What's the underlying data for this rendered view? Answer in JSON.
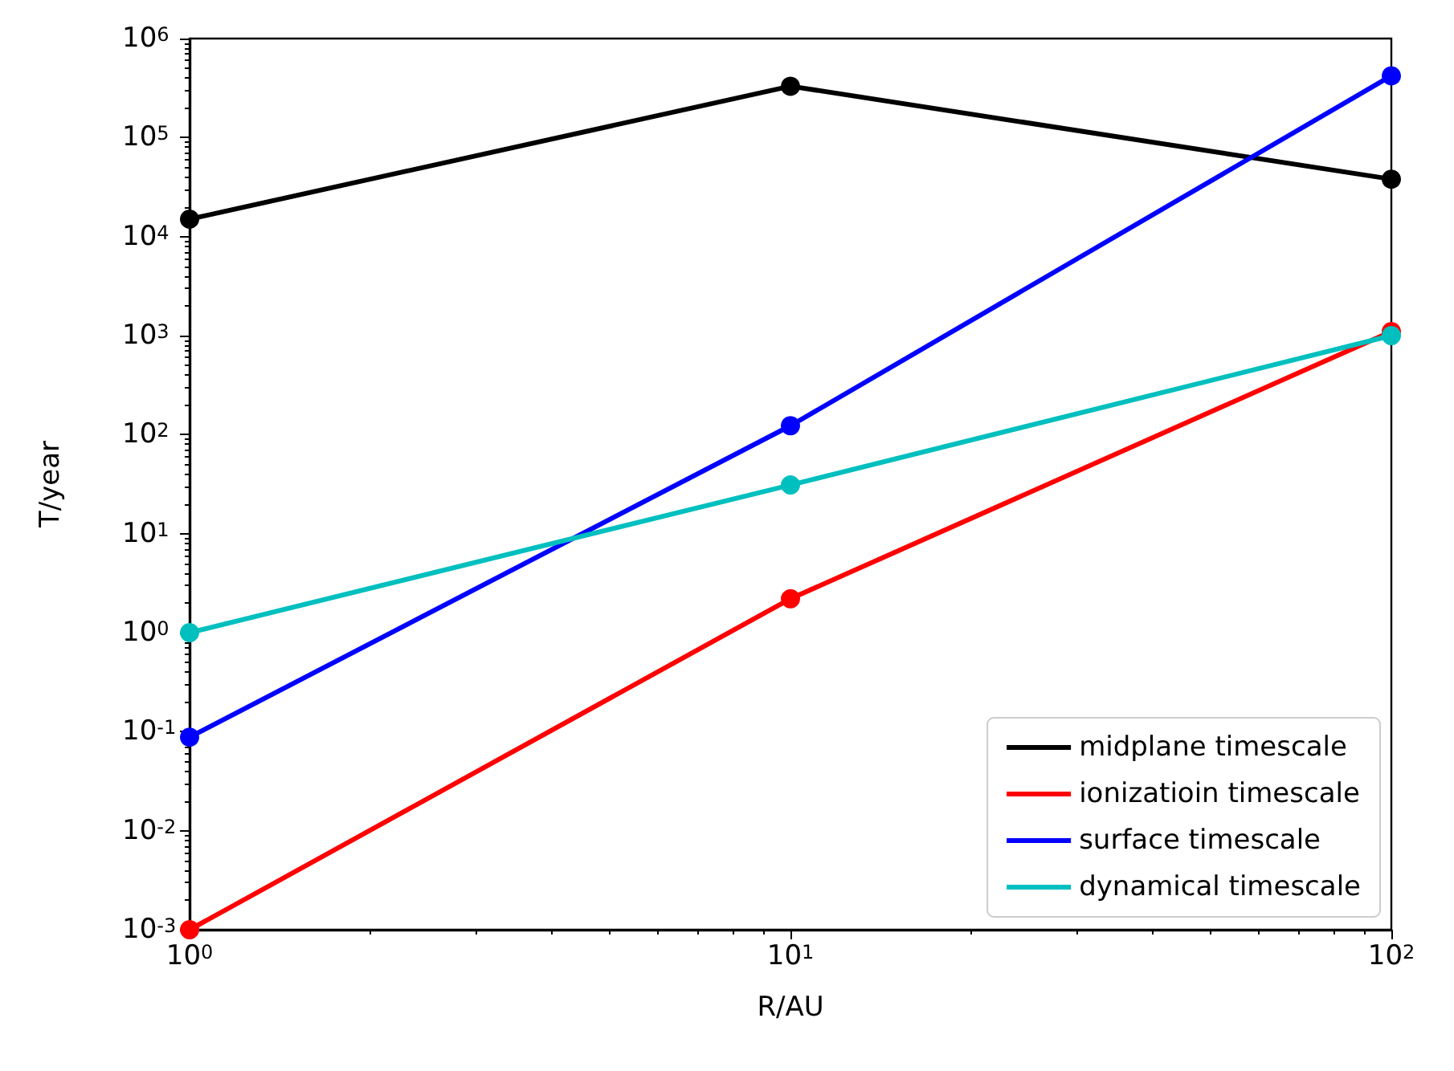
{
  "chart_data": {
    "type": "line",
    "xlabel": "R/AU",
    "ylabel": "T/year",
    "log": "xy",
    "grid": false,
    "legend": "bottom right",
    "marker": "circle",
    "line_style": "solid",
    "x": [
      1,
      10,
      100
    ],
    "xlim": [
      1,
      100
    ],
    "xticks": [
      {
        "value": 1,
        "label": "10$^{0}$"
      },
      {
        "value": 10,
        "label": "10$^{1}$"
      },
      {
        "value": 100,
        "label": "10$^{2}$"
      }
    ],
    "ylim": [
      0.001,
      1000000
    ],
    "yticks": [
      {
        "value": 0.001,
        "label": "10$^{-3}$"
      },
      {
        "value": 0.01,
        "label": "10$^{-2}$"
      },
      {
        "value": 0.1,
        "label": "10$^{-1}$"
      },
      {
        "value": 1,
        "label": "10$^{0}$"
      },
      {
        "value": 10,
        "label": "10$^{1}$"
      },
      {
        "value": 100,
        "label": "10$^{2}$"
      },
      {
        "value": 1000,
        "label": "10$^{3}$"
      },
      {
        "value": 10000,
        "label": "10$^{4}$"
      },
      {
        "value": 100000,
        "label": "10$^{5}$"
      },
      {
        "value": 1000000,
        "label": "10$^{6}$"
      }
    ],
    "series": [
      {
        "name": "midplane timescale",
        "color": "#000000",
        "values": [
          15000,
          330000,
          38000
        ]
      },
      {
        "name": "ionizatioin timescale",
        "color": "#ff0000",
        "values": [
          0.001,
          2.2,
          1100
        ]
      },
      {
        "name": "surface timescale",
        "color": "#0000ff",
        "values": [
          0.088,
          123,
          420000
        ]
      },
      {
        "name": "dynamical timescale",
        "color": "#00bfbf",
        "values": [
          1,
          31,
          1000
        ]
      }
    ]
  }
}
